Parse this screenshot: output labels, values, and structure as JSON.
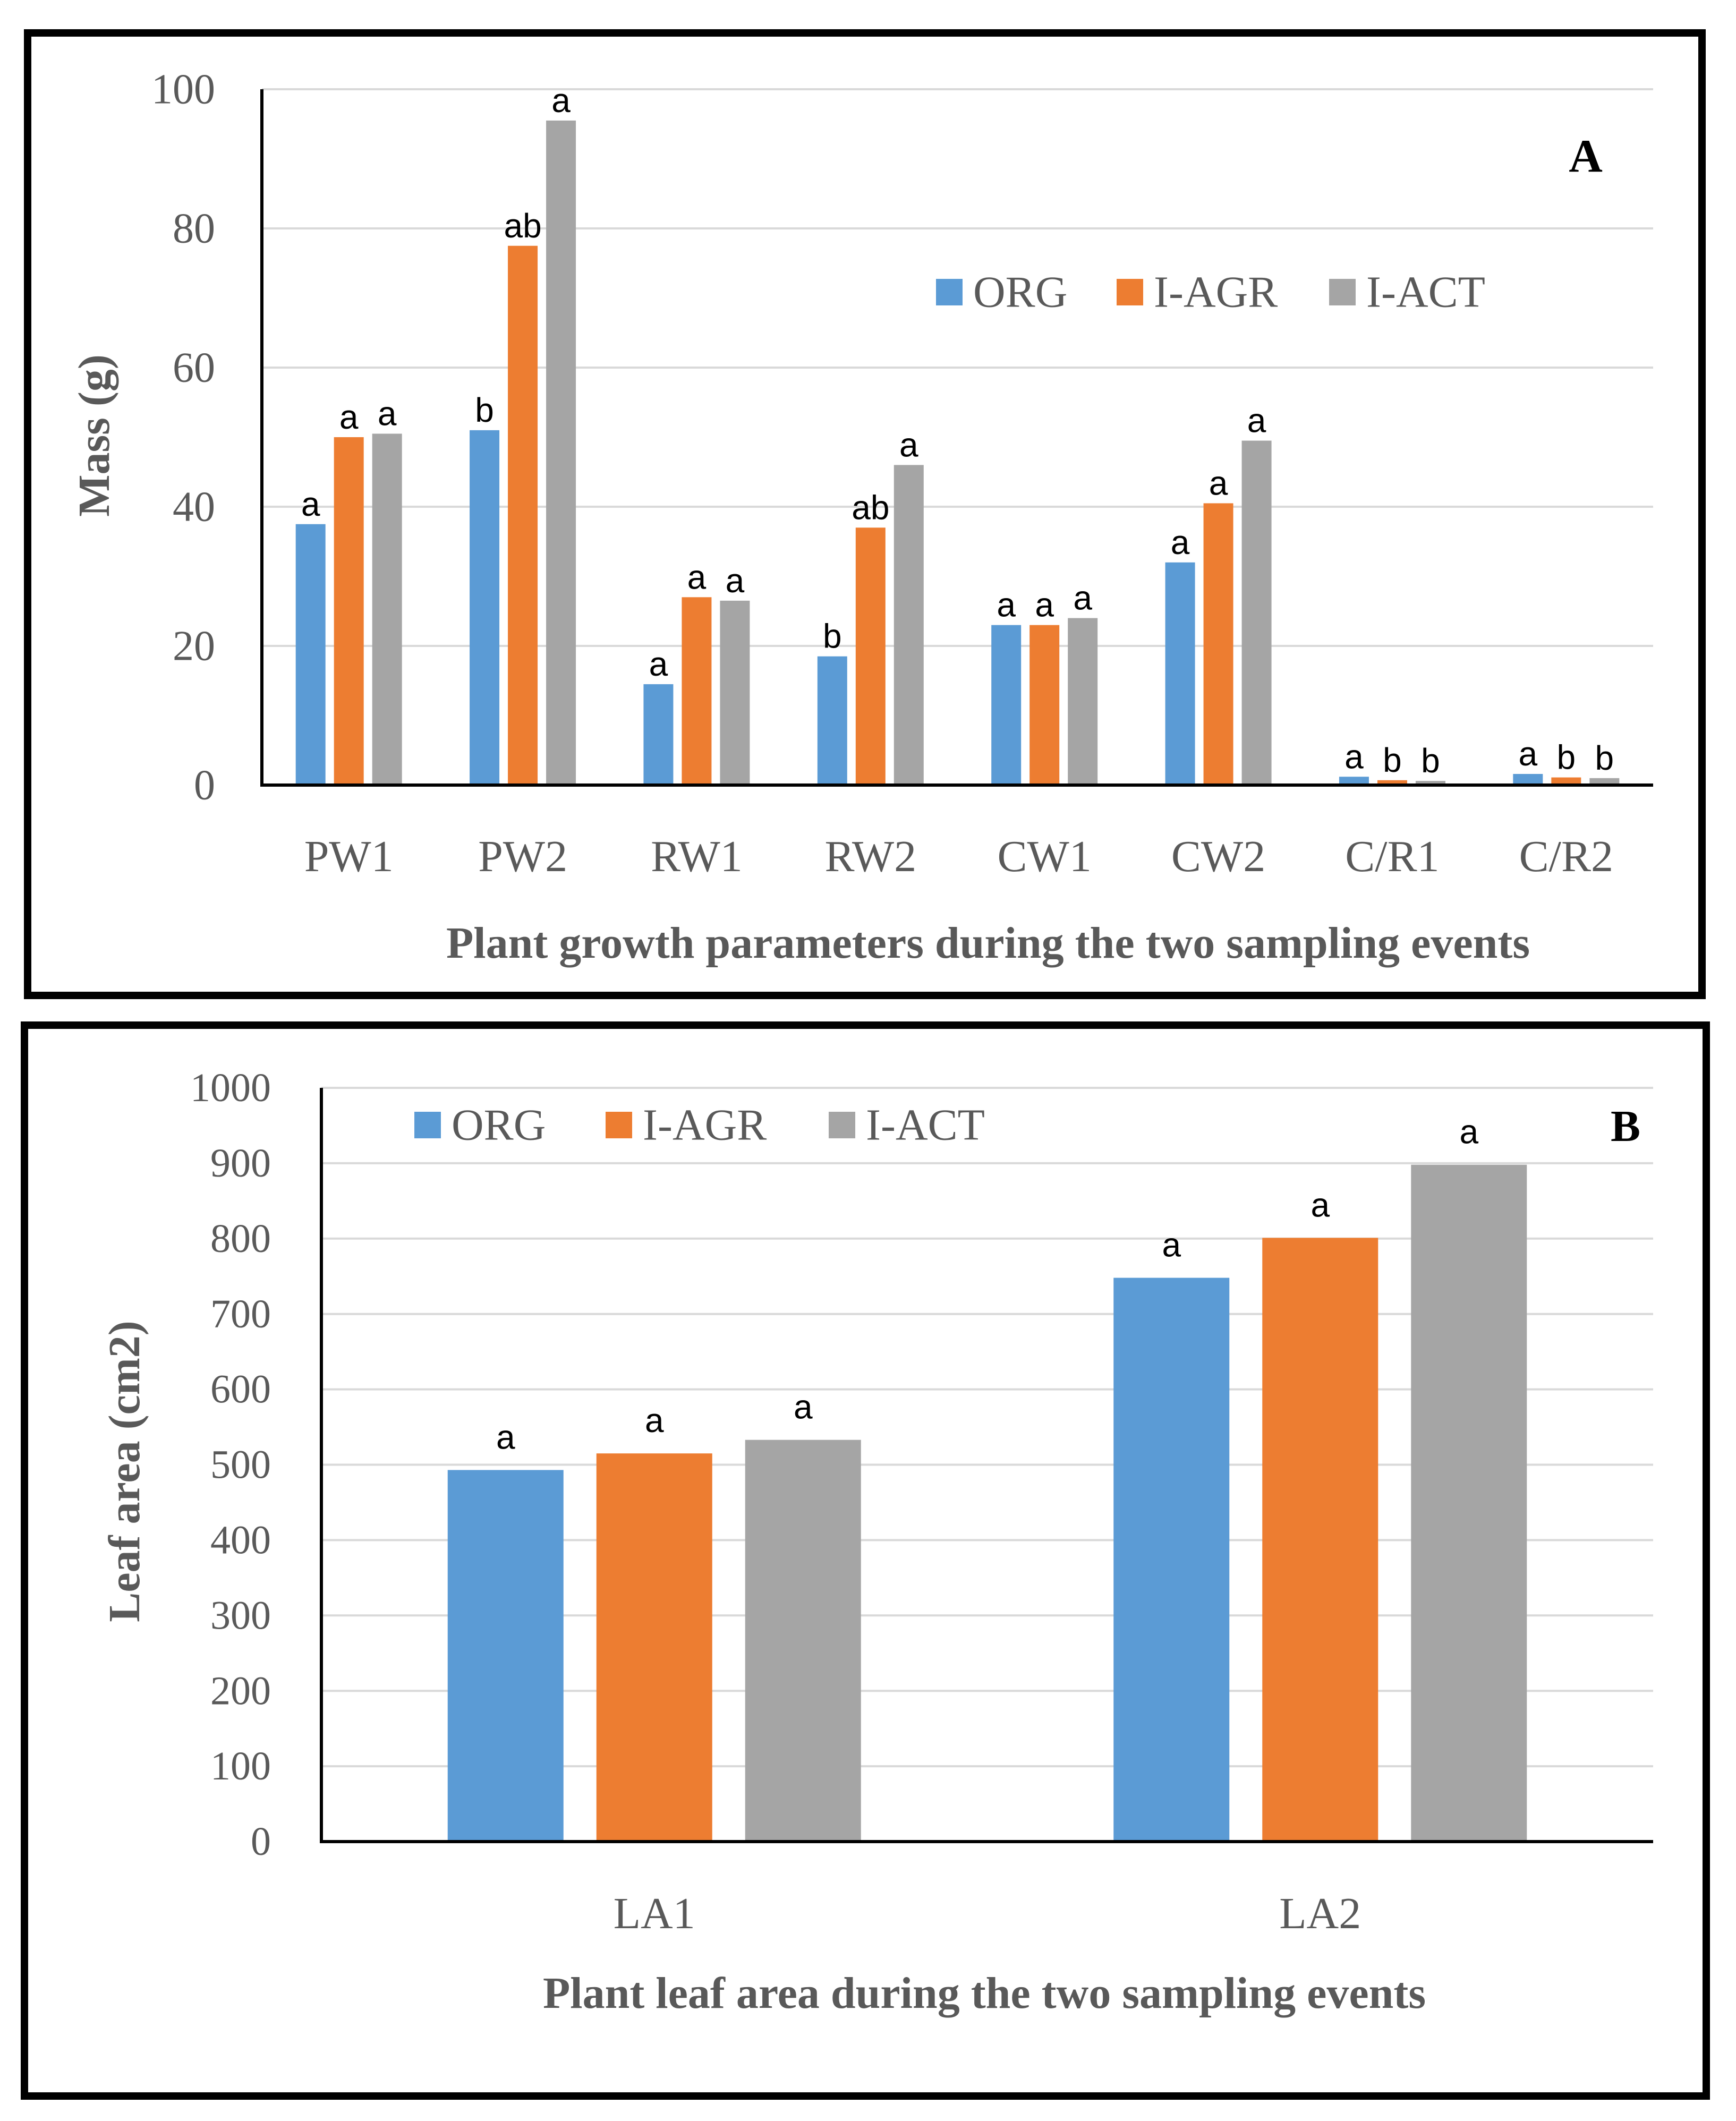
{
  "colors": {
    "ORG": "#5b9bd5",
    "I-AGR": "#ed7d31",
    "I-ACT": "#a5a5a5",
    "grid": "#d9d9d9",
    "axis": "#000000",
    "frame": "#000000"
  },
  "chart_data": [
    {
      "type": "bar",
      "panel_label": "A",
      "title": "",
      "xlabel": "Plant growth parameters during the two sampling events",
      "ylabel": "Mass (g)",
      "ylim": [
        0,
        100
      ],
      "yticks": [
        "0",
        "20",
        "40",
        "60",
        "80",
        "100"
      ],
      "grid": true,
      "legend_position": "top-right",
      "categories": [
        "PW1",
        "PW2",
        "RW1",
        "RW2",
        "CW1",
        "CW2",
        "C/R1",
        "C/R2"
      ],
      "series": [
        {
          "name": "ORG",
          "values": [
            37.5,
            51,
            14.5,
            18.5,
            23,
            32,
            1.2,
            1.6
          ],
          "letters": [
            "a",
            "b",
            "a",
            "b",
            "a",
            "a",
            "a",
            "a"
          ]
        },
        {
          "name": "I-AGR",
          "values": [
            50,
            77.5,
            27,
            37,
            23,
            40.5,
            0.7,
            1.1
          ],
          "letters": [
            "a",
            "ab",
            "a",
            "ab",
            "a",
            "a",
            "b",
            "b"
          ]
        },
        {
          "name": "I-ACT",
          "values": [
            50.5,
            95.5,
            26.5,
            46,
            24,
            49.5,
            0.6,
            1.0
          ],
          "letters": [
            "a",
            "a",
            "a",
            "a",
            "a",
            "a",
            "b",
            "b"
          ]
        }
      ]
    },
    {
      "type": "bar",
      "panel_label": "B",
      "title": "",
      "xlabel": "Plant leaf area during the two sampling events",
      "ylabel": "Leaf area (cm2)",
      "ylim": [
        0,
        1000
      ],
      "yticks": [
        "0",
        "100",
        "200",
        "300",
        "400",
        "500",
        "600",
        "700",
        "800",
        "900",
        "1000"
      ],
      "grid": true,
      "legend_position": "top",
      "categories": [
        "LA1",
        "LA2"
      ],
      "series": [
        {
          "name": "ORG",
          "values": [
            493,
            748
          ],
          "letters": [
            "a",
            "a"
          ]
        },
        {
          "name": "I-AGR",
          "values": [
            515,
            801
          ],
          "letters": [
            "a",
            "a"
          ]
        },
        {
          "name": "I-ACT",
          "values": [
            533,
            898
          ],
          "letters": [
            "a",
            "a"
          ]
        }
      ]
    }
  ]
}
